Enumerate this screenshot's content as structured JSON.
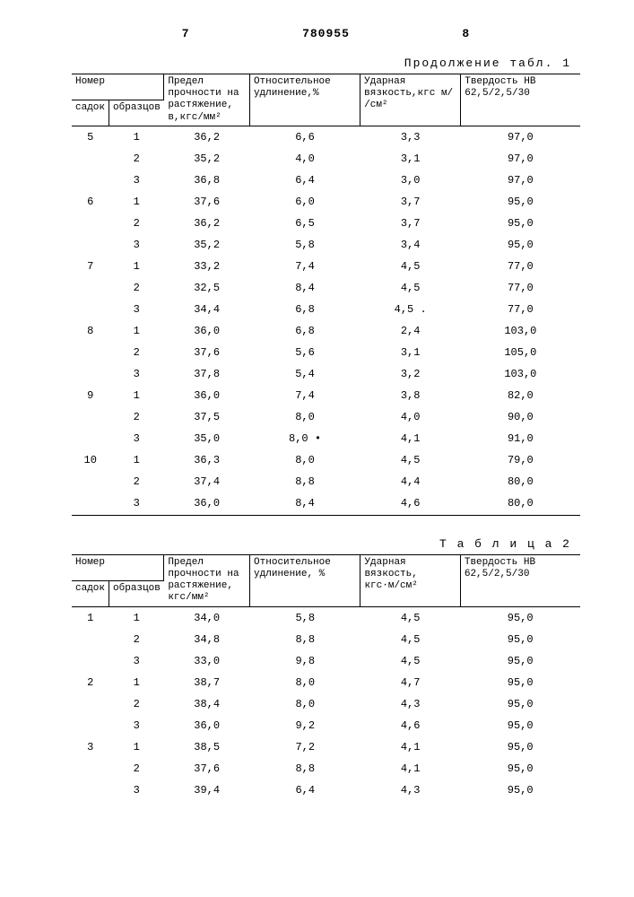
{
  "doc_number": "780955",
  "page_left": "7",
  "page_right": "8",
  "caption_cont": "Продолжение табл. 1",
  "caption_t2": "Т а б л и ц а 2",
  "headers": {
    "nomer": "Номер",
    "sadok": "садок",
    "obraz": "образцов",
    "predel": "Предел прочности на растяжение, в,кгс/мм²",
    "predel2": "Предел прочности на растяжение, кгс/мм²",
    "otnos": "Относительное удлинение,%",
    "otnos2": "Относительное удлинение, %",
    "udar": "Ударная вязкость,кгс м/ /см²",
    "udar2": "Ударная вязкость, кгс·м/см²",
    "tverd": "Твердость НВ 62,5/2,5/30",
    "tverd2": "Твердость НВ 62,5/2,5/30"
  },
  "table1": [
    {
      "s": "5",
      "o": "1",
      "p": "36,2",
      "e": "6,6",
      "v": "3,3",
      "h": "97,0"
    },
    {
      "s": "",
      "o": "2",
      "p": "35,2",
      "e": "4,0",
      "v": "3,1",
      "h": "97,0"
    },
    {
      "s": "",
      "o": "3",
      "p": "36,8",
      "e": "6,4",
      "v": "3,0",
      "h": "97,0"
    },
    {
      "s": "6",
      "o": "1",
      "p": "37,6",
      "e": "6,0",
      "v": "3,7",
      "h": "95,0"
    },
    {
      "s": "",
      "o": "2",
      "p": "36,2",
      "e": "6,5",
      "v": "3,7",
      "h": "95,0"
    },
    {
      "s": "",
      "o": "3",
      "p": "35,2",
      "e": "5,8",
      "v": "3,4",
      "h": "95,0"
    },
    {
      "s": "7",
      "o": "1",
      "p": "33,2",
      "e": "7,4",
      "v": "4,5",
      "h": "77,0"
    },
    {
      "s": "",
      "o": "2",
      "p": "32,5",
      "e": "8,4",
      "v": "4,5",
      "h": "77,0"
    },
    {
      "s": "",
      "o": "3",
      "p": "34,4",
      "e": "6,8",
      "v": "4,5 .",
      "h": "77,0"
    },
    {
      "s": "8",
      "o": "1",
      "p": "36,0",
      "e": "6,8",
      "v": "2,4",
      "h": "103,0"
    },
    {
      "s": "",
      "o": "2",
      "p": "37,6",
      "e": "5,6",
      "v": "3,1",
      "h": "105,0"
    },
    {
      "s": "",
      "o": "3",
      "p": "37,8",
      "e": "5,4",
      "v": "3,2",
      "h": "103,0"
    },
    {
      "s": "9",
      "o": "1",
      "p": "36,0",
      "e": "7,4",
      "v": "3,8",
      "h": "82,0"
    },
    {
      "s": "",
      "o": "2",
      "p": "37,5",
      "e": "8,0",
      "v": "4,0",
      "h": "90,0"
    },
    {
      "s": "",
      "o": "3",
      "p": "35,0",
      "e": "8,0 •",
      "v": "4,1",
      "h": "91,0"
    },
    {
      "s": "10",
      "o": "1",
      "p": "36,3",
      "e": "8,0",
      "v": "4,5",
      "h": "79,0"
    },
    {
      "s": "",
      "o": "2",
      "p": "37,4",
      "e": "8,8",
      "v": "4,4",
      "h": "80,0"
    },
    {
      "s": "",
      "o": "3",
      "p": "36,0",
      "e": "8,4",
      "v": "4,6",
      "h": "80,0"
    }
  ],
  "table2": [
    {
      "s": "1",
      "o": "1",
      "p": "34,0",
      "e": "5,8",
      "v": "4,5",
      "h": "95,0"
    },
    {
      "s": "",
      "o": "2",
      "p": "34,8",
      "e": "8,8",
      "v": "4,5",
      "h": "95,0"
    },
    {
      "s": "",
      "o": "3",
      "p": "33,0",
      "e": "9,8",
      "v": "4,5",
      "h": "95,0"
    },
    {
      "s": "2",
      "o": "1",
      "p": "38,7",
      "e": "8,0",
      "v": "4,7",
      "h": "95,0"
    },
    {
      "s": "",
      "o": "2",
      "p": "38,4",
      "e": "8,0",
      "v": "4,3",
      "h": "95,0"
    },
    {
      "s": "",
      "o": "3",
      "p": "36,0",
      "e": "9,2",
      "v": "4,6",
      "h": "95,0"
    },
    {
      "s": "3",
      "o": "1",
      "p": "38,5",
      "e": "7,2",
      "v": "4,1",
      "h": "95,0"
    },
    {
      "s": "",
      "o": "2",
      "p": "37,6",
      "e": "8,8",
      "v": "4,1",
      "h": "95,0"
    },
    {
      "s": "",
      "o": "3",
      "p": "39,4",
      "e": "6,4",
      "v": "4,3",
      "h": "95,0"
    }
  ]
}
